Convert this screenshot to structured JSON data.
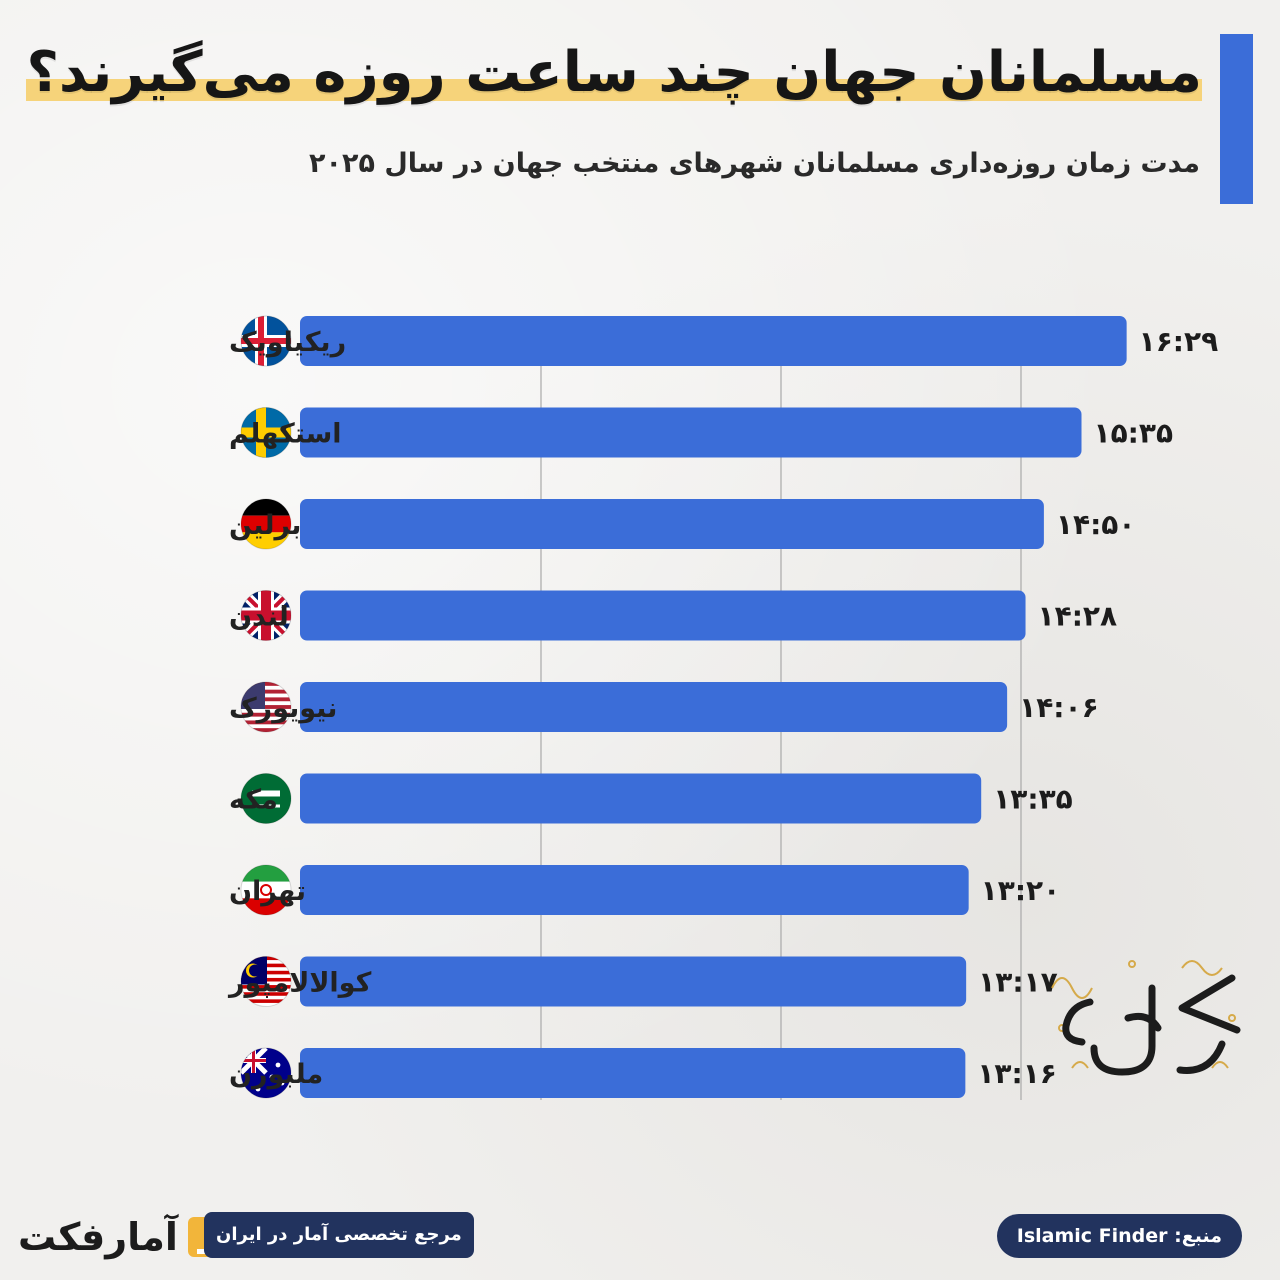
{
  "header": {
    "title": "مسلمانان جهان چند ساعت روزه می‌گیرند؟",
    "subtitle": "مدت زمان روزه‌داری مسلمانان شهرهای منتخب جهان در سال ۲۰۲۵"
  },
  "colors": {
    "accent": "#3b6dd8",
    "highlight": "#f6d37a",
    "badge": "#22335e"
  },
  "chart_data": {
    "type": "bar",
    "orientation": "horizontal",
    "grid": true,
    "xlim": [
      0,
      16.55
    ],
    "categories": [
      "ریکیاویک",
      "استکهلم",
      "برلین",
      "لندن",
      "نیویورک",
      "مکه",
      "تهران",
      "کوالالامپور",
      "ملبورن"
    ],
    "flags": [
      "iceland-flag-icon",
      "sweden-flag-icon",
      "germany-flag-icon",
      "uk-flag-icon",
      "usa-flag-icon",
      "saudi-arabia-flag-icon",
      "iran-flag-icon",
      "malaysia-flag-icon",
      "australia-flag-icon"
    ],
    "values": [
      16.483,
      15.583,
      14.833,
      14.467,
      14.1,
      13.583,
      13.333,
      13.283,
      13.267
    ],
    "value_labels": [
      "۱۶:۲۹",
      "۱۵:۳۵",
      "۱۴:۵۰",
      "۱۴:۲۸",
      "۱۴:۰۶",
      "۱۳:۳۵",
      "۱۳:۲۰",
      "۱۳:۱۷",
      "۱۳:۱۶"
    ]
  },
  "footer": {
    "brand": "آمارفکت",
    "tagline": "مرجع تخصصی آمار در ایران",
    "source": "منبع: Islamic Finder"
  }
}
